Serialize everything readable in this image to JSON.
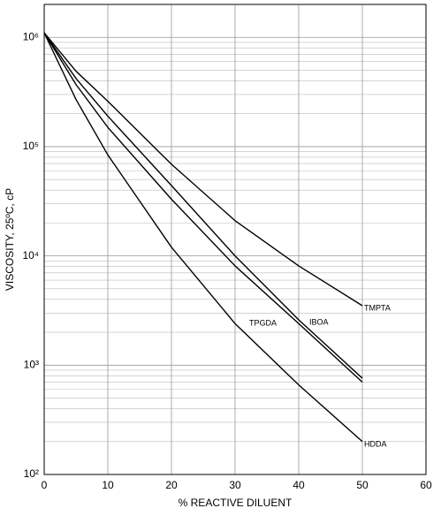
{
  "chart_data": {
    "type": "line",
    "x_label": "% REACTIVE DILUENT",
    "y_label": "VISCOSITY, 25ºC, cP",
    "x": [
      0,
      5,
      10,
      20,
      30,
      40,
      50
    ],
    "series": [
      {
        "name": "TMPTA",
        "color": "#000000",
        "values": [
          1100000,
          490000,
          260000,
          69000,
          21000,
          8100,
          3500
        ]
      },
      {
        "name": "IBOA",
        "color": "#000000",
        "values": [
          1100000,
          420000,
          190000,
          44000,
          10000,
          2600,
          760
        ]
      },
      {
        "name": "TPGDA",
        "color": "#000000",
        "values": [
          1100000,
          370000,
          150000,
          33000,
          8100,
          2400,
          700
        ]
      },
      {
        "name": "HDDA",
        "color": "#000000",
        "values": [
          1100000,
          270000,
          84000,
          12000,
          2400,
          660,
          200
        ]
      }
    ],
    "xlim": [
      0,
      60
    ],
    "xticks": [
      0,
      10,
      20,
      30,
      40,
      50,
      60
    ],
    "ylim": [
      100,
      2000000
    ],
    "log_y": true,
    "yticks": [
      {
        "value": 100,
        "label": "10²"
      },
      {
        "value": 1000,
        "label": "10³"
      },
      {
        "value": 10000,
        "label": "10⁴"
      },
      {
        "value": 100000,
        "label": "10⁵"
      },
      {
        "value": 1000000,
        "label": "10⁶"
      }
    ],
    "grid": true
  }
}
